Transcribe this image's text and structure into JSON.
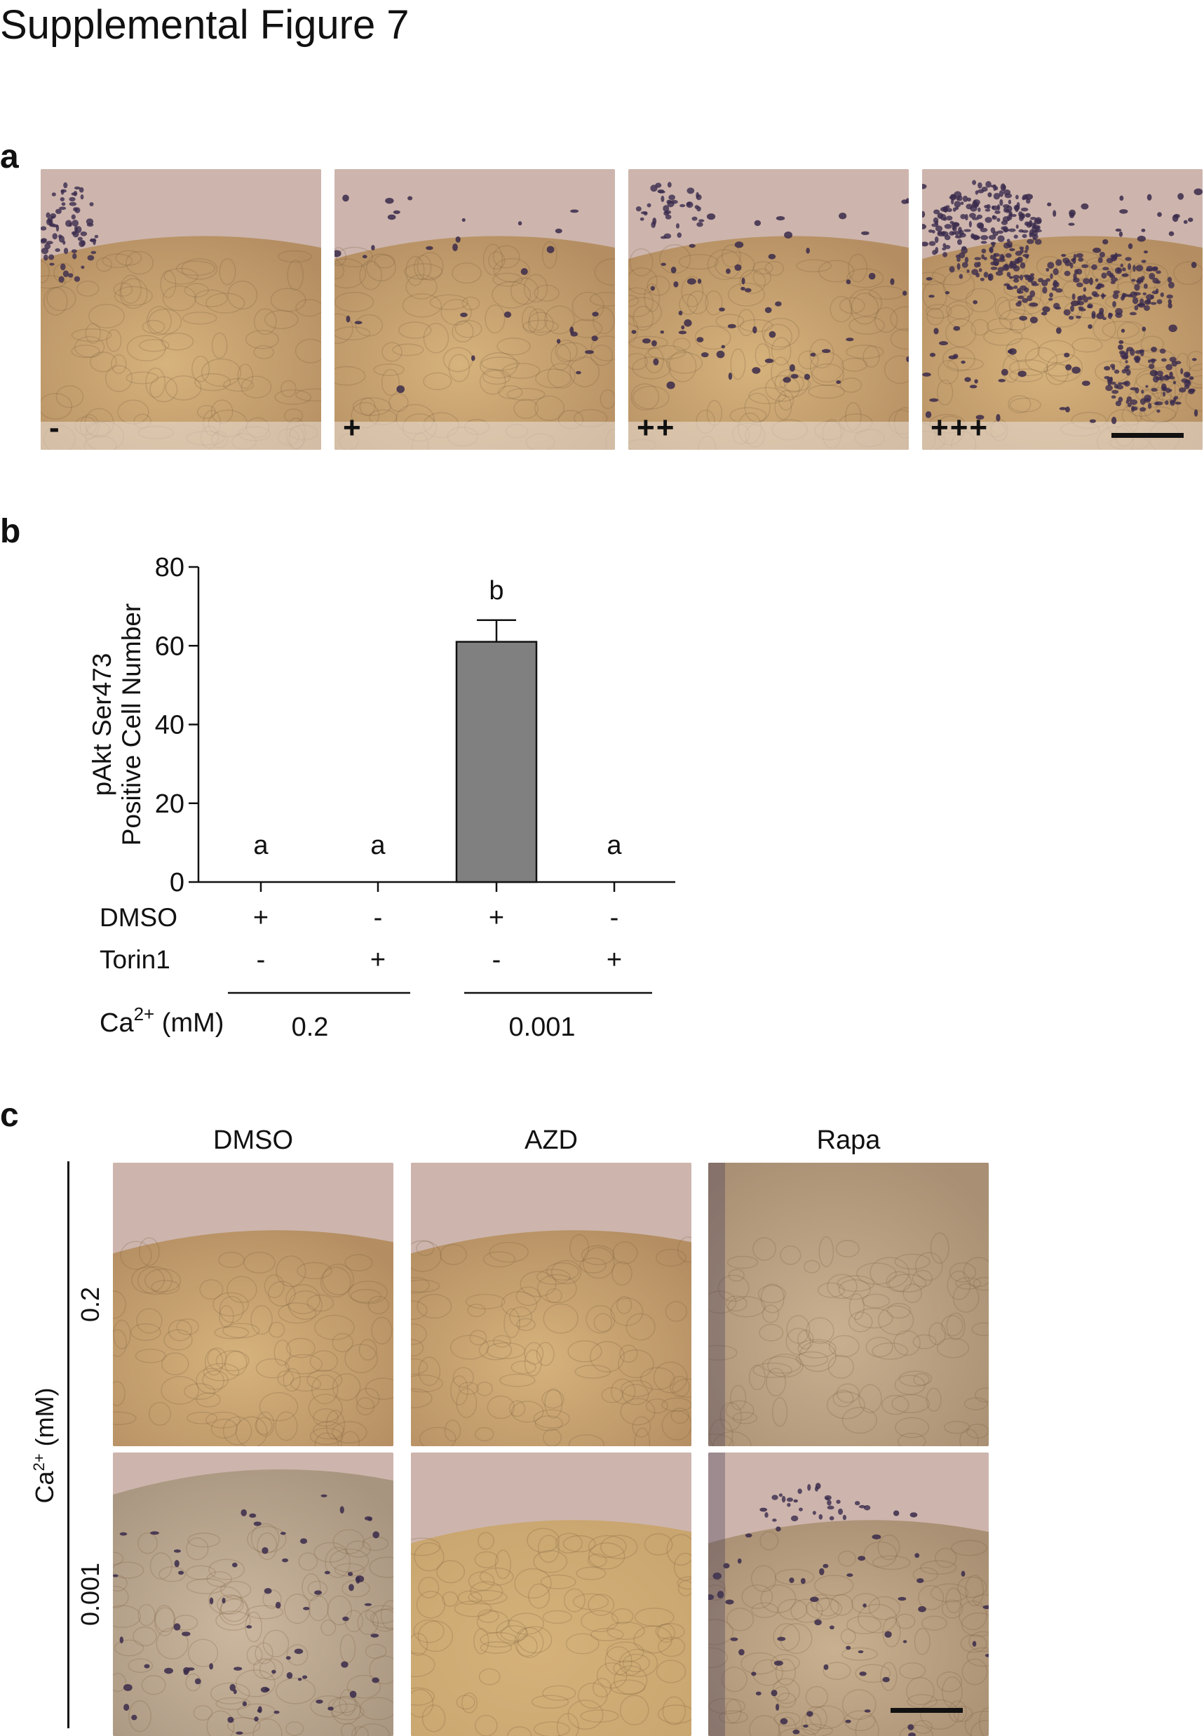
{
  "page_title": "Supplemental Figure 7",
  "panels": {
    "a": {
      "letter": "a",
      "scores": [
        "-",
        "+",
        "++",
        "+++"
      ]
    },
    "b": {
      "letter": "b",
      "treatment_rows": [
        {
          "label": "DMSO",
          "values": [
            "+",
            "-",
            "+",
            "-"
          ]
        },
        {
          "label": "Torin1",
          "values": [
            "-",
            "+",
            "-",
            "+"
          ]
        }
      ],
      "ca_label": "Ca",
      "ca_sup": "2+",
      "ca_unit": " (mM)",
      "ca_groups": [
        "0.2",
        "0.001"
      ]
    },
    "c": {
      "letter": "c",
      "columns": [
        "DMSO",
        "AZD",
        "Rapa"
      ],
      "rows": [
        "0.2",
        "0.001"
      ],
      "row_axis_label": "Ca",
      "row_axis_sup": "2+",
      "row_axis_unit": " (mM)"
    }
  },
  "chart_data": {
    "type": "bar",
    "title": "",
    "xlabel": "",
    "ylabel": "pAkt Ser473 Positive Cell Number",
    "ylabel_lines": [
      "pAkt Ser473",
      "Positive Cell Number"
    ],
    "ylim": [
      0,
      80
    ],
    "yticks": [
      "0",
      "20",
      "40",
      "60",
      "80"
    ],
    "categories": [
      "DMSO+ Torin1- 0.2",
      "DMSO- Torin1+ 0.2",
      "DMSO+ Torin1- 0.001",
      "DMSO- Torin1+ 0.001"
    ],
    "values": [
      0,
      0,
      61,
      0
    ],
    "error": [
      0,
      0,
      5.5,
      0
    ],
    "significance_letters": [
      "a",
      "a",
      "b",
      "a"
    ],
    "bar_color": "#808080"
  }
}
